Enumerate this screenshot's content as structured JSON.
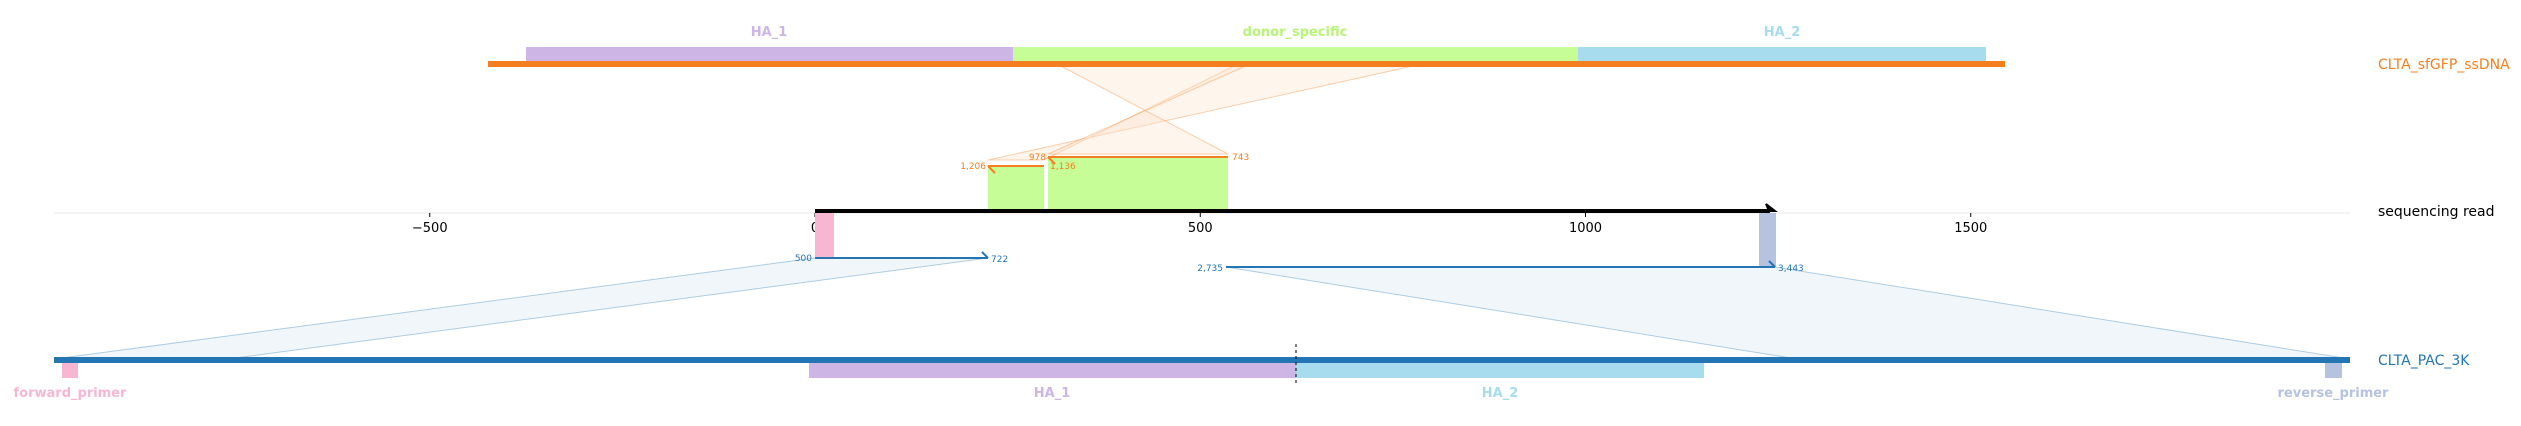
{
  "colors": {
    "ha1": "#cdb6e6",
    "donor": "#c6fd97",
    "ha2": "#a6dcee",
    "donor_bar": "#f47f20",
    "ref_bar": "#2375b4",
    "fwd_primer": "#f7b6d2",
    "rev_primer": "#b5c3e0",
    "read": "#000000",
    "donor_label": "#f47f20",
    "ref_label": "#2375b4"
  },
  "donor": {
    "name": "CLTA_sfGFP_ssDNA",
    "features": [
      {
        "name": "HA_1"
      },
      {
        "name": "donor_specific"
      },
      {
        "name": "HA_2"
      }
    ]
  },
  "reference": {
    "name": "CLTA_PAC_3K",
    "features": [
      {
        "name": "forward_primer"
      },
      {
        "name": "HA_1"
      },
      {
        "name": "HA_2"
      },
      {
        "name": "reverse_primer"
      }
    ]
  },
  "read": {
    "name": "sequencing read",
    "axis_ticks": [
      "−500",
      "0",
      "500",
      "1000",
      "1500"
    ],
    "axis_values": [
      -500,
      0,
      500,
      1000,
      1500
    ],
    "start": 0,
    "end": 1240
  },
  "alignments": {
    "donor": [
      {
        "read_start": 225,
        "read_end": 297,
        "label_left": "1,206",
        "label_right": "978"
      },
      {
        "read_start": 302,
        "read_end": 536,
        "label_left": "1,136",
        "label_right": "743"
      }
    ],
    "reference": [
      {
        "read_start": 0,
        "read_end": 222,
        "label_left": "500",
        "label_right": "722"
      },
      {
        "read_start": 530,
        "read_end": 1240,
        "label_left": "2,735",
        "label_right": "3,443"
      }
    ]
  }
}
